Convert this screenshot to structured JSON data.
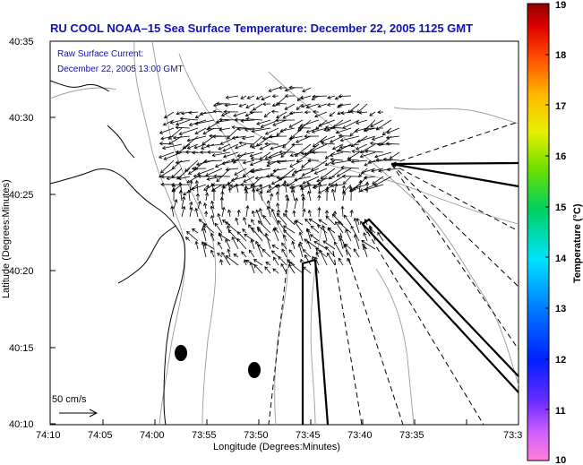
{
  "header": {
    "title": "RU COOL  NOAA–15  Sea Surface Temperature:  December 22, 2005 1125 GMT"
  },
  "legend": {
    "line1": "Raw Surface Current:",
    "line2": "December 22, 2005 13:00 GMT"
  },
  "axes": {
    "xlabel": "Longitude (Degrees:Minutes)",
    "ylabel": "Latitude (Degrees:Minutes)",
    "xticks": [
      "74:10",
      "74:05",
      "74:00",
      "73:55",
      "73:50",
      "73:45",
      "73:40",
      "73:35",
      "73:3"
    ],
    "yticks": [
      "40:35",
      "40:30",
      "40:25",
      "40:20",
      "40:15",
      "40:10"
    ]
  },
  "scale": {
    "label": "50 cm/s"
  },
  "colorbar": {
    "label": "Temperature (°C)",
    "ticks": [
      "19",
      "18",
      "17",
      "16",
      "15",
      "14",
      "13",
      "12",
      "11",
      "10"
    ],
    "range": [
      10,
      19
    ]
  },
  "map_data": {
    "type": "current-vector-map",
    "lon_range_min": [
      -74.1667,
      -73.55
    ],
    "lat_range_deg": [
      40.1667,
      40.5833
    ],
    "markers": [
      {
        "name": "station-1",
        "lon": -73.982,
        "lat": 40.244
      },
      {
        "name": "station-2",
        "lon": -73.871,
        "lat": 40.226
      }
    ]
  },
  "colors": {
    "title": "#1010c0",
    "land_line": "#000000",
    "contour": "#9a9a9a"
  }
}
